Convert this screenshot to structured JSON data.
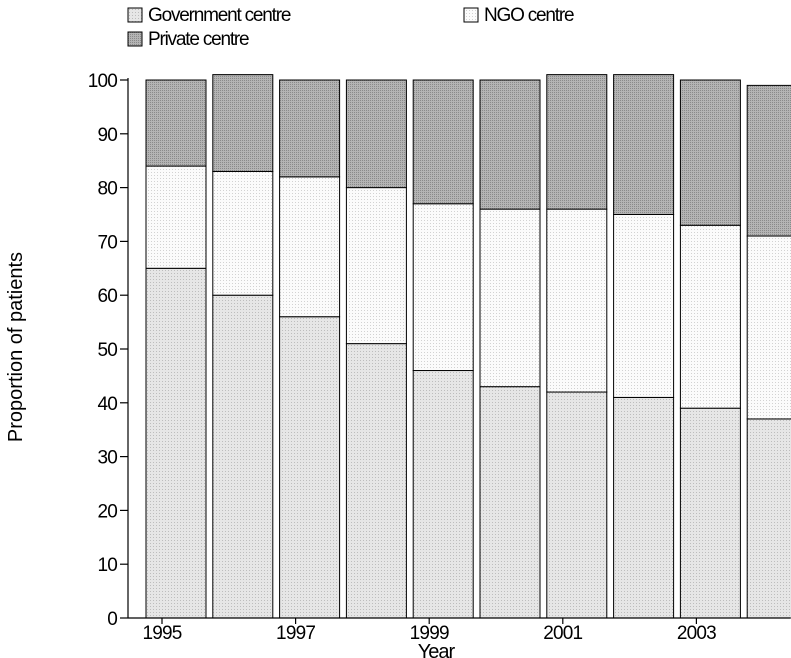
{
  "chart_data": {
    "type": "bar",
    "stacked": true,
    "categories": [
      "1995",
      "1996",
      "1997",
      "1998",
      "1999",
      "2000",
      "2001",
      "2002",
      "2003",
      "2004"
    ],
    "x_tick_labels": [
      "1995",
      "1997",
      "1999",
      "2001",
      "2003"
    ],
    "series": [
      {
        "name": "Government centre",
        "color": "#e4e4e4",
        "pattern": "fine-dot",
        "values": [
          65,
          60,
          56,
          51,
          46,
          43,
          42,
          41,
          39,
          37
        ]
      },
      {
        "name": "NGO centre",
        "color": "#fafafa",
        "pattern": "sparse-dot",
        "values": [
          19,
          23,
          26,
          29,
          31,
          33,
          34,
          34,
          34,
          34
        ]
      },
      {
        "name": "Private centre",
        "color": "#a9a9a9",
        "pattern": "dense-dot",
        "values": [
          16,
          18,
          18,
          20,
          23,
          24,
          25,
          26,
          27,
          28
        ]
      }
    ],
    "xlabel": "Year",
    "ylabel": "Proportion of patients",
    "ylim": [
      0,
      100
    ],
    "y_ticks": [
      0,
      10,
      20,
      30,
      40,
      50,
      60,
      70,
      80,
      90,
      100
    ],
    "grid": false,
    "legend_position": "top-left"
  }
}
